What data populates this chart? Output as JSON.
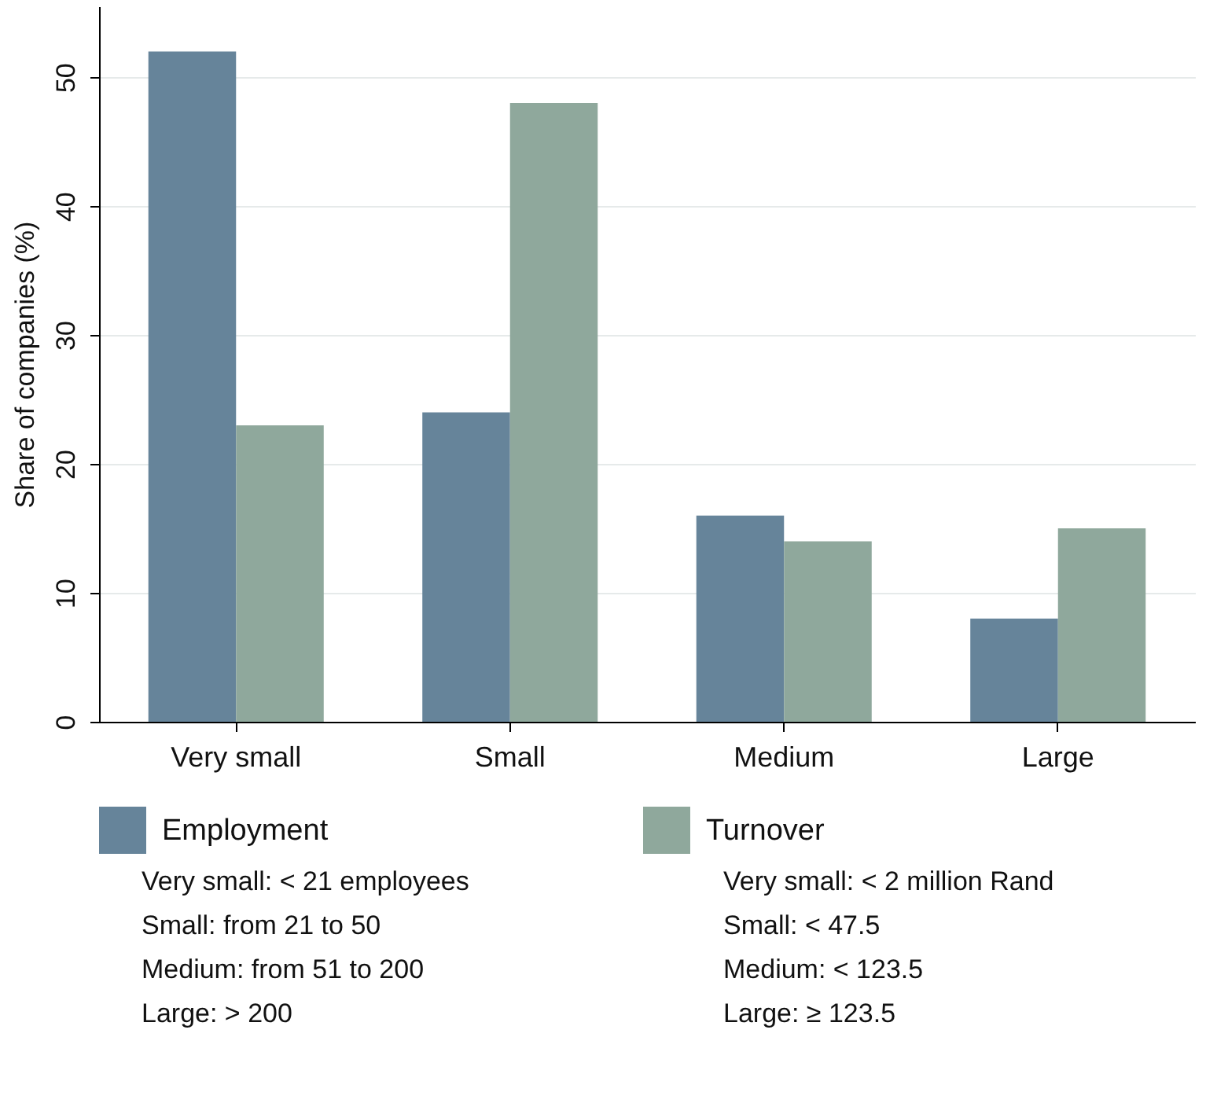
{
  "chart_data": {
    "type": "bar",
    "ylabel": "Share of companies (%)",
    "categories": [
      "Very small",
      "Small",
      "Medium",
      "Large"
    ],
    "series": [
      {
        "name": "Employment",
        "color": "#66849a",
        "values": [
          52,
          24,
          16,
          8
        ]
      },
      {
        "name": "Turnover",
        "color": "#8fa89c",
        "values": [
          23,
          48,
          14,
          15
        ]
      }
    ],
    "ylim": [
      0,
      55.5
    ],
    "yticks": [
      0,
      10,
      20,
      30,
      40,
      50
    ],
    "grid": "y",
    "legend": "bottom",
    "annotations": [
      "Very small:  < 21 employees",
      "Small: from 21 to 50",
      "Medium: from 51 to 200",
      "Large: > 200",
      "Very small: < 2 million Rand",
      "Small: < 47.5",
      "Medium: < 123.5",
      "Large: ≥ 123.5"
    ]
  }
}
